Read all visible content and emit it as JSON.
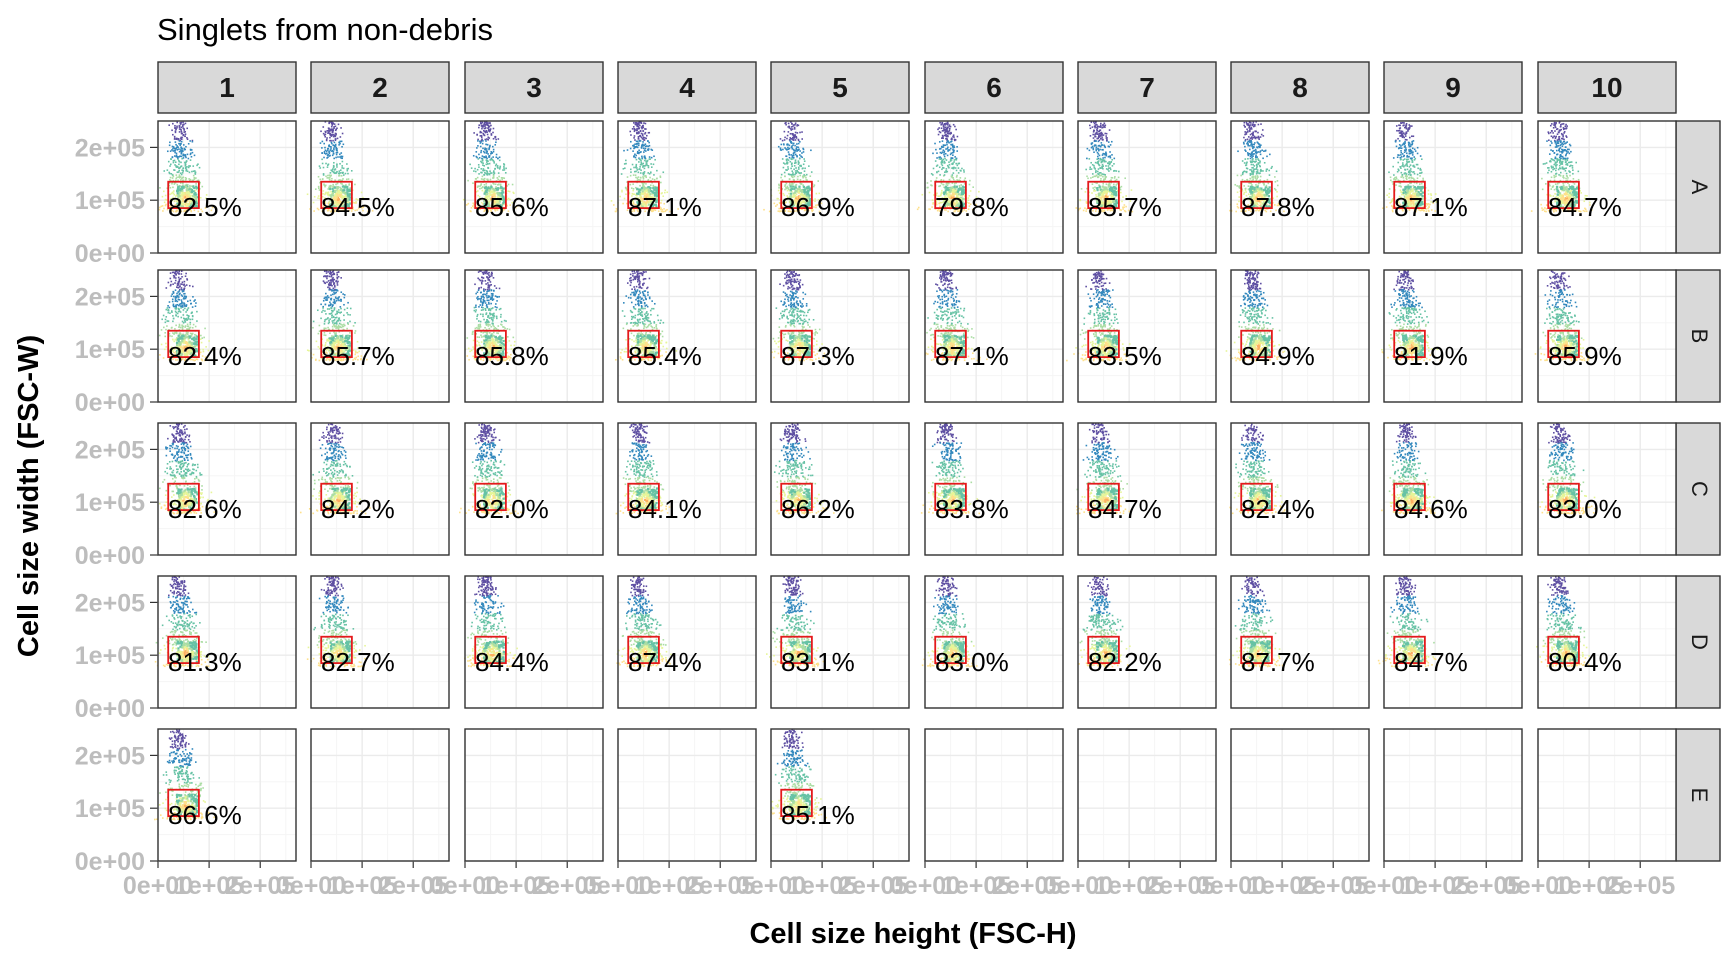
{
  "chart_data": {
    "type": "scatter",
    "title": "Singlets from non-debris",
    "xlabel": "Cell size height (FSC-H)",
    "ylabel": "Cell size width (FSC-W)",
    "column_facets": [
      "1",
      "2",
      "3",
      "4",
      "5",
      "6",
      "7",
      "8",
      "9",
      "10"
    ],
    "row_facets": [
      "A",
      "B",
      "C",
      "D",
      "E"
    ],
    "y_ticks": [
      "0e+00",
      "1e+05",
      "2e+05"
    ],
    "x_ticks": [
      "0e+00",
      "1e+05",
      "2e+05"
    ],
    "xlim": [
      0,
      270000
    ],
    "ylim": [
      0,
      250000
    ],
    "gate": {
      "x_range": [
        20000,
        80000
      ],
      "y_range": [
        85000,
        135000
      ],
      "color": "#e41a1c"
    },
    "grid": true,
    "panels": [
      {
        "row": "A",
        "col": "1",
        "label": "82.5%"
      },
      {
        "row": "A",
        "col": "2",
        "label": "84.5%"
      },
      {
        "row": "A",
        "col": "3",
        "label": "85.6%"
      },
      {
        "row": "A",
        "col": "4",
        "label": "87.1%"
      },
      {
        "row": "A",
        "col": "5",
        "label": "86.9%"
      },
      {
        "row": "A",
        "col": "6",
        "label": "79.8%"
      },
      {
        "row": "A",
        "col": "7",
        "label": "85.7%"
      },
      {
        "row": "A",
        "col": "8",
        "label": "87.8%"
      },
      {
        "row": "A",
        "col": "9",
        "label": "87.1%"
      },
      {
        "row": "A",
        "col": "10",
        "label": "84.7%"
      },
      {
        "row": "B",
        "col": "1",
        "label": "82.4%"
      },
      {
        "row": "B",
        "col": "2",
        "label": "85.7%"
      },
      {
        "row": "B",
        "col": "3",
        "label": "85.8%"
      },
      {
        "row": "B",
        "col": "4",
        "label": "85.4%"
      },
      {
        "row": "B",
        "col": "5",
        "label": "87.3%"
      },
      {
        "row": "B",
        "col": "6",
        "label": "87.1%"
      },
      {
        "row": "B",
        "col": "7",
        "label": "83.5%"
      },
      {
        "row": "B",
        "col": "8",
        "label": "84.9%"
      },
      {
        "row": "B",
        "col": "9",
        "label": "81.9%"
      },
      {
        "row": "B",
        "col": "10",
        "label": "85.9%"
      },
      {
        "row": "C",
        "col": "1",
        "label": "82.6%"
      },
      {
        "row": "C",
        "col": "2",
        "label": "84.2%"
      },
      {
        "row": "C",
        "col": "3",
        "label": "82.0%"
      },
      {
        "row": "C",
        "col": "4",
        "label": "84.1%"
      },
      {
        "row": "C",
        "col": "5",
        "label": "86.2%"
      },
      {
        "row": "C",
        "col": "6",
        "label": "83.8%"
      },
      {
        "row": "C",
        "col": "7",
        "label": "84.7%"
      },
      {
        "row": "C",
        "col": "8",
        "label": "82.4%"
      },
      {
        "row": "C",
        "col": "9",
        "label": "84.6%"
      },
      {
        "row": "C",
        "col": "10",
        "label": "83.0%"
      },
      {
        "row": "D",
        "col": "1",
        "label": "81.3%"
      },
      {
        "row": "D",
        "col": "2",
        "label": "82.7%"
      },
      {
        "row": "D",
        "col": "3",
        "label": "84.4%"
      },
      {
        "row": "D",
        "col": "4",
        "label": "87.4%"
      },
      {
        "row": "D",
        "col": "5",
        "label": "83.1%"
      },
      {
        "row": "D",
        "col": "6",
        "label": "83.0%"
      },
      {
        "row": "D",
        "col": "7",
        "label": "82.2%"
      },
      {
        "row": "D",
        "col": "8",
        "label": "87.7%"
      },
      {
        "row": "D",
        "col": "9",
        "label": "84.7%"
      },
      {
        "row": "D",
        "col": "10",
        "label": "80.4%"
      },
      {
        "row": "E",
        "col": "1",
        "label": "86.6%"
      },
      {
        "row": "E",
        "col": "5",
        "label": "85.1%"
      }
    ],
    "colors": {
      "panel_border": "#333333",
      "strip_fill": "#d9d9d9",
      "grid_major": "#ebebeb",
      "grid_minor": "#f5f5f5",
      "tick_label": "#bdbdbd",
      "density_palette": [
        "#5e4fa2",
        "#3288bd",
        "#66c2a5",
        "#abdda4",
        "#e6f598",
        "#fee08b",
        "#fdae61",
        "#f46d43",
        "#d53e4f"
      ]
    }
  }
}
